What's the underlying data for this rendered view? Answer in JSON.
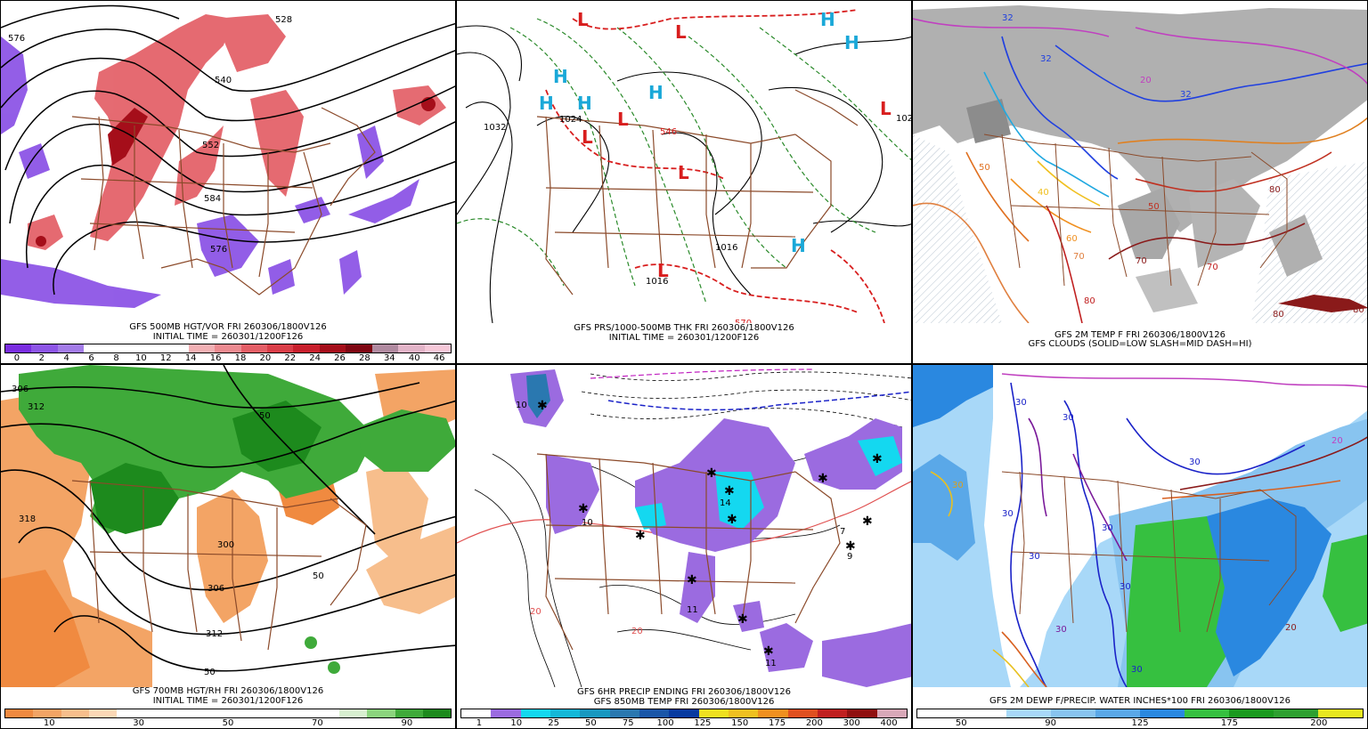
{
  "panels": [
    {
      "id": "p1",
      "caption_line1": "GFS 500MB HGT/VOR FRI 260306/1800V126",
      "caption_line2": "INITIAL TIME = 260301/1200F126",
      "legend_colors": [
        "#7a2de0",
        "#8d55e6",
        "#a37ce8",
        "#ffffff",
        "#ffffff",
        "#ffffff",
        "#ffffff",
        "#f2b0b4",
        "#ec8a90",
        "#e35e66",
        "#d93e48",
        "#c81f2c",
        "#a50e1a",
        "#7f0612",
        "#b08aa0",
        "#e2b4c8",
        "#f6c8d8"
      ],
      "legend_ticks": [
        "0",
        "2",
        "4",
        "6",
        "8",
        "10",
        "12",
        "14",
        "16",
        "18",
        "20",
        "22",
        "24",
        "26",
        "28",
        "34",
        "40",
        "46"
      ],
      "contour_labels": [
        "576",
        "528",
        "540",
        "552",
        "576",
        "584"
      ]
    },
    {
      "id": "p2",
      "caption_line1": "GFS PRS/1000-500MB THK FRI 260306/1800V126",
      "caption_line2": "INITIAL TIME = 260301/1200F126",
      "contour_labels": [
        "1032",
        "1024",
        "1016",
        "1016",
        "102",
        "570",
        "546"
      ]
    },
    {
      "id": "p3",
      "caption_line1": "GFS 2M TEMP F FRI 260306/1800V126",
      "caption_line2": "GFS CLOUDS (SOLID=LOW SLASH=MID DASH=HI)",
      "contour_labels": [
        "32",
        "32",
        "20",
        "32",
        "40",
        "50",
        "60",
        "70",
        "80",
        "70",
        "80",
        "50",
        "70",
        "80",
        "80"
      ]
    },
    {
      "id": "p4",
      "caption_line1": "GFS 700MB HGT/RH FRI 260306/1800V126",
      "caption_line2": "INITIAL TIME = 260301/1200F126",
      "legend_colors": [
        "#f08a40",
        "#f3a465",
        "#f7be8c",
        "#fbd8b6",
        "#ffffff",
        "#ffffff",
        "#ffffff",
        "#ffffff",
        "#ffffff",
        "#ffffff",
        "#ffffff",
        "#ffffff",
        "#d8f0d0",
        "#8cd47e",
        "#3faa3a",
        "#1d8a1d"
      ],
      "legend_ticks": [
        "10",
        "30",
        "50",
        "70",
        "90"
      ],
      "contour_labels": [
        "306",
        "312",
        "318",
        "300",
        "306",
        "312",
        "50",
        "50",
        "50"
      ]
    },
    {
      "id": "p5",
      "caption_line1": "GFS 6HR PRECIP ENDING FRI 260306/1800V126",
      "caption_line2": "GFS 850MB TEMP FRI 260306/1800V126",
      "legend_colors": [
        "#ffffff",
        "#9b6be0",
        "#14d8f0",
        "#14b8d8",
        "#1898c0",
        "#2a78b0",
        "#1a56a8",
        "#083aa0",
        "#f0e020",
        "#f0c020",
        "#f09020",
        "#e05020",
        "#c02020",
        "#901010",
        "#d8a8b8"
      ],
      "legend_ticks": [
        "1",
        "10",
        "25",
        "50",
        "75",
        "100",
        "125",
        "150",
        "175",
        "200",
        "300",
        "400"
      ],
      "contour_labels": [
        "10",
        "14",
        "10",
        "11",
        "7",
        "9",
        "11",
        "20",
        "20"
      ]
    },
    {
      "id": "p6",
      "caption_line1": "GFS 2M DEWP F/PRECIP. WATER INCHES*100 FRI 260306/1800V126",
      "legend_colors": [
        "#ffffff",
        "#ffffff",
        "#a8d8f8",
        "#88c4f0",
        "#5aa8e8",
        "#2a88e0",
        "#36c040",
        "#1a9a1e",
        "#2ea030",
        "#e8e820"
      ],
      "legend_ticks": [
        "50",
        "90",
        "125",
        "175",
        "200"
      ],
      "contour_labels": [
        "30",
        "30",
        "30",
        "30",
        "30",
        "30",
        "30",
        "30",
        "30",
        "20",
        "20",
        "30"
      ]
    }
  ]
}
